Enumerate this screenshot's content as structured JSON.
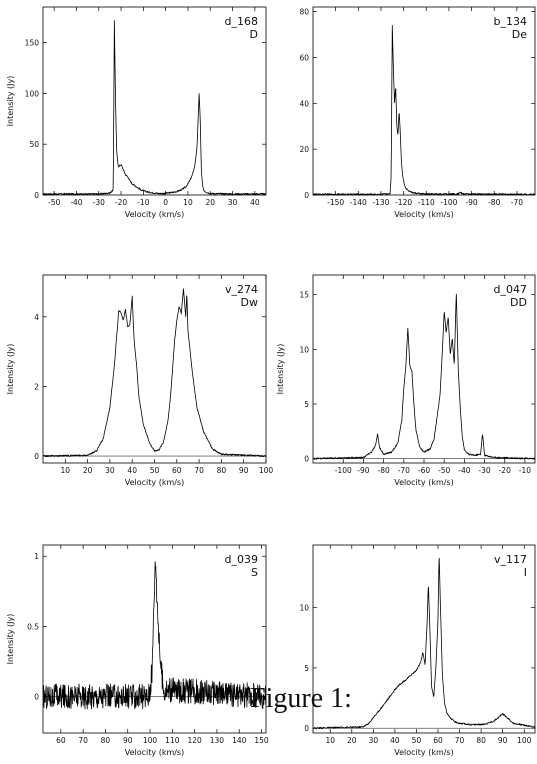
{
  "figure": {
    "caption": "Figure 1:"
  },
  "chart_data": [
    {
      "type": "line",
      "name_label": "d_168",
      "class_label": "D",
      "xlabel": "Velocity (km/s)",
      "ylabel": "Intensity (Jy)",
      "xlim": [
        -55,
        45
      ],
      "ylim": [
        0,
        185
      ],
      "xticks": [
        -50,
        -40,
        -30,
        -20,
        -10,
        0,
        10,
        20,
        30,
        40
      ],
      "yticks": [
        0,
        50,
        100,
        150
      ],
      "ytick_labels": [
        "0",
        "50",
        "100",
        "150"
      ],
      "x": [
        -55,
        -30,
        -25,
        -23.5,
        -23,
        -22.5,
        -22,
        -21.5,
        -21,
        -20,
        -19,
        -18,
        -17,
        -16,
        -15,
        -13,
        -11,
        -9,
        -7,
        -5,
        -3,
        -1,
        1,
        3,
        5,
        7,
        9,
        10,
        11,
        12,
        13,
        14,
        14.5,
        15,
        15.5,
        16,
        16.5,
        17,
        18,
        20,
        30,
        45
      ],
      "values": [
        1,
        1,
        2,
        5,
        172,
        95,
        45,
        32,
        28,
        30,
        25,
        20,
        18,
        14,
        11,
        8,
        5,
        3.5,
        2.5,
        2,
        1.5,
        1.5,
        2,
        2.5,
        3.5,
        5,
        8,
        11,
        15,
        20,
        28,
        45,
        70,
        100,
        75,
        25,
        10,
        5,
        3,
        1.5,
        1,
        1
      ]
    },
    {
      "type": "line",
      "name_label": "b_134",
      "class_label": "De",
      "xlabel": "Velocity (km/s)",
      "ylabel": "",
      "xlim": [
        -160,
        -62
      ],
      "ylim": [
        0,
        82
      ],
      "xticks": [
        -150,
        -140,
        -130,
        -120,
        -110,
        -100,
        -90,
        -80,
        -70
      ],
      "yticks": [
        0,
        20,
        40,
        60,
        80
      ],
      "ytick_labels": [
        "0",
        "20",
        "40",
        "60",
        "80"
      ],
      "x": [
        -160,
        -130,
        -126,
        -125.5,
        -125,
        -124.5,
        -124,
        -123.5,
        -123,
        -122.5,
        -122,
        -121.5,
        -121,
        -120.5,
        -120,
        -119.5,
        -119,
        -118,
        -116,
        -113,
        -110,
        -100,
        -96,
        -95,
        -94,
        -90,
        -62
      ],
      "values": [
        0.3,
        0.3,
        0.5,
        8,
        74,
        55,
        40,
        48,
        30,
        26,
        37,
        28,
        15,
        9,
        6,
        4,
        3,
        2,
        1,
        0.6,
        0.4,
        0.4,
        0.5,
        1.2,
        0.5,
        0.4,
        0.3
      ]
    },
    {
      "type": "line",
      "name_label": "v_274",
      "class_label": "Dw",
      "xlabel": "Velocity (km/s)",
      "ylabel": "Intensity (Jy)",
      "xlim": [
        0,
        100
      ],
      "ylim": [
        -0.2,
        5.2
      ],
      "xticks": [
        10,
        20,
        30,
        40,
        50,
        60,
        70,
        80,
        90,
        100
      ],
      "yticks": [
        0,
        2,
        4
      ],
      "ytick_labels": [
        "0",
        "2",
        "4"
      ],
      "x": [
        0,
        20,
        24,
        27,
        30,
        32,
        33,
        34,
        35,
        36,
        37,
        38,
        39,
        40,
        40.5,
        41,
        42,
        43,
        45,
        48,
        50,
        52,
        54,
        56,
        57,
        58,
        59,
        60,
        61,
        62,
        63,
        64,
        64.5,
        65,
        66,
        67,
        69,
        72,
        76,
        80,
        100
      ],
      "values": [
        0,
        0.02,
        0.15,
        0.5,
        1.4,
        2.6,
        3.4,
        4.2,
        4.1,
        3.9,
        4.2,
        3.7,
        3.8,
        4.6,
        3.8,
        3.2,
        2.6,
        1.7,
        0.9,
        0.35,
        0.15,
        0.18,
        0.4,
        1.0,
        1.6,
        2.4,
        3.3,
        3.9,
        4.3,
        4.1,
        4.8,
        4.0,
        4.7,
        3.6,
        3.0,
        2.4,
        1.4,
        0.7,
        0.2,
        0.05,
        0
      ]
    },
    {
      "type": "line",
      "name_label": "d_047",
      "class_label": "DD",
      "xlabel": "Velocity (km/s)",
      "ylabel": "Intensity (Jy)",
      "xlim": [
        -115,
        -5
      ],
      "ylim": [
        -0.4,
        16.8
      ],
      "xticks": [
        -100,
        -90,
        -80,
        -70,
        -60,
        -50,
        -40,
        -30,
        -20,
        -10
      ],
      "yticks": [
        0,
        5,
        10,
        15
      ],
      "ytick_labels": [
        "0",
        "5",
        "10",
        "15"
      ],
      "x": [
        -115,
        -90,
        -86,
        -84,
        -83,
        -82,
        -80,
        -76,
        -73,
        -71,
        -70,
        -69,
        -68,
        -67,
        -66,
        -65,
        -64,
        -62,
        -60,
        -57,
        -55,
        -53,
        -52,
        -51,
        -50,
        -49,
        -48,
        -47,
        -46,
        -45,
        -44,
        -43,
        -42,
        -41,
        -40,
        -38,
        -35,
        -32,
        -31,
        -30,
        -25,
        -5
      ],
      "values": [
        0,
        0.1,
        0.6,
        1.2,
        2.3,
        1.0,
        0.4,
        0.6,
        1.4,
        3.5,
        6.5,
        8.4,
        12,
        8.5,
        8.0,
        5.0,
        2.6,
        1.0,
        0.6,
        0.9,
        1.8,
        4.5,
        6.0,
        9.5,
        13.5,
        11.5,
        13,
        9.5,
        11,
        8.5,
        15.3,
        8.0,
        4.5,
        2.0,
        0.8,
        0.4,
        0.3,
        0.4,
        2.3,
        0.3,
        0.1,
        0
      ]
    },
    {
      "type": "line",
      "name_label": "d_039",
      "class_label": "S",
      "xlabel": "Velocity (km/s)",
      "ylabel": "Intensity (Jy)",
      "xlim": [
        52,
        152
      ],
      "ylim": [
        -0.26,
        1.08
      ],
      "xticks": [
        60,
        70,
        80,
        90,
        100,
        110,
        120,
        130,
        140,
        150
      ],
      "yticks": [
        0,
        0.5,
        1
      ],
      "ytick_labels": [
        "0",
        "0.5",
        "1"
      ],
      "x": [
        52,
        99,
        100,
        101,
        101.5,
        102,
        102.5,
        103,
        103.5,
        104,
        105,
        106,
        152
      ],
      "values": [
        0,
        0,
        0.05,
        0.2,
        0.55,
        0.8,
        1.0,
        0.75,
        0.6,
        0.4,
        0.2,
        0.05,
        0
      ]
    },
    {
      "type": "line",
      "name_label": "v_117",
      "class_label": "I",
      "xlabel": "Velocity (km/s)",
      "ylabel": "",
      "xlim": [
        2,
        105
      ],
      "ylim": [
        -0.4,
        15.2
      ],
      "xticks": [
        10,
        20,
        30,
        40,
        50,
        60,
        70,
        80,
        90,
        100
      ],
      "yticks": [
        0,
        5,
        10
      ],
      "ytick_labels": [
        "0",
        "5",
        "10"
      ],
      "x": [
        2,
        25,
        28,
        30,
        32,
        35,
        38,
        40,
        42,
        45,
        48,
        50,
        52,
        53,
        54,
        55,
        55.5,
        56,
        57,
        58,
        59,
        60,
        60.5,
        61,
        62,
        63,
        64,
        66,
        68,
        70,
        75,
        80,
        83,
        86,
        88,
        90,
        92,
        95,
        105
      ],
      "values": [
        0,
        0.1,
        0.4,
        0.9,
        1.3,
        2.0,
        2.7,
        3.2,
        3.6,
        4.0,
        4.5,
        4.8,
        5.5,
        6.3,
        5.2,
        9.0,
        12,
        9.5,
        3.5,
        2.6,
        5.0,
        9,
        14.6,
        11,
        4.5,
        2.2,
        1.3,
        0.8,
        0.5,
        0.4,
        0.3,
        0.3,
        0.4,
        0.6,
        0.9,
        1.2,
        0.9,
        0.4,
        0.1
      ]
    }
  ]
}
